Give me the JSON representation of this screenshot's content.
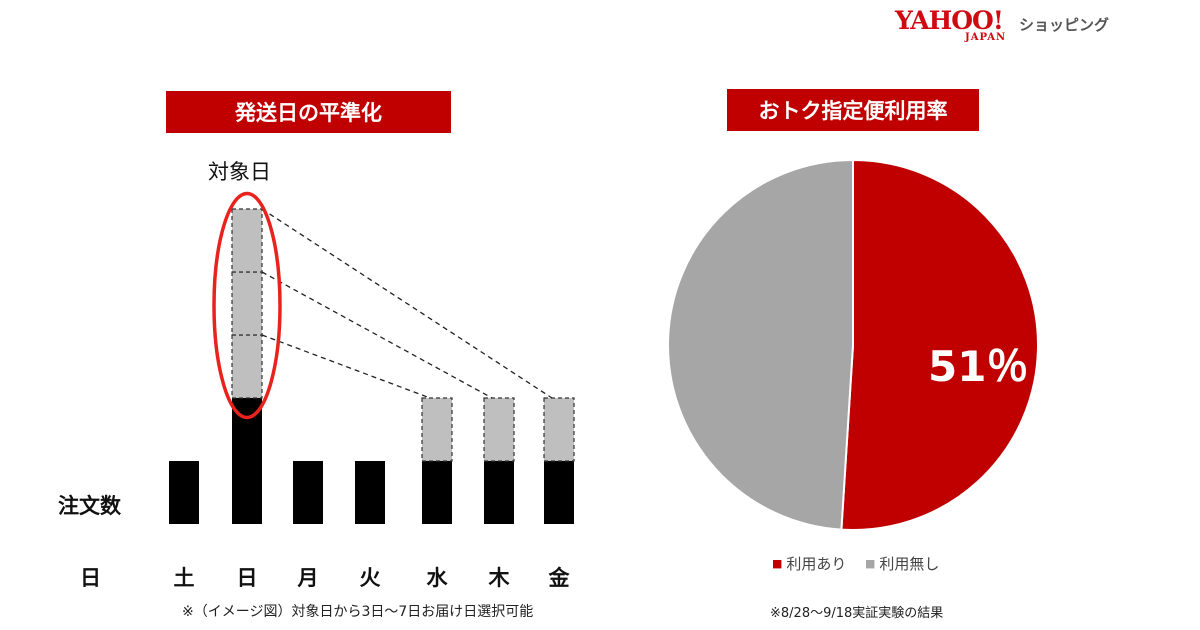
{
  "brand": {
    "logo_text": "YAHOO!",
    "logo_sub": "JAPAN",
    "service": "ショッピング",
    "color": "#d10a11"
  },
  "colors": {
    "accent": "#c00000",
    "bar": "#000000",
    "shifted": "#bfbfbf",
    "pie_used": "#c00000",
    "pie_unused": "#a6a6a6",
    "highlight_ring": "#e8221c"
  },
  "chart_data": [
    {
      "type": "bar",
      "title": "発送日の平準化",
      "xlabel": "日",
      "ylabel": "注文数",
      "categories": [
        "土",
        "日",
        "月",
        "火",
        "水",
        "木",
        "金"
      ],
      "series": [
        {
          "values": [
            2,
            4,
            2,
            2,
            2,
            2,
            2
          ]
        },
        {
          "values": [
            0,
            3,
            0,
            0,
            1,
            1,
            1
          ]
        }
      ],
      "annotation": "対象日",
      "highlight_category": "日",
      "note": "※（イメージ図）対象日から3日～7日お届け日選択可能"
    },
    {
      "type": "pie",
      "title": "おトク指定便利用率",
      "labels": [
        "利用あり",
        "利用無し"
      ],
      "values": [
        51,
        49
      ],
      "data_label": "51％",
      "legend": "bottom",
      "note": "※8/28～9/18実証実験の結果"
    }
  ]
}
